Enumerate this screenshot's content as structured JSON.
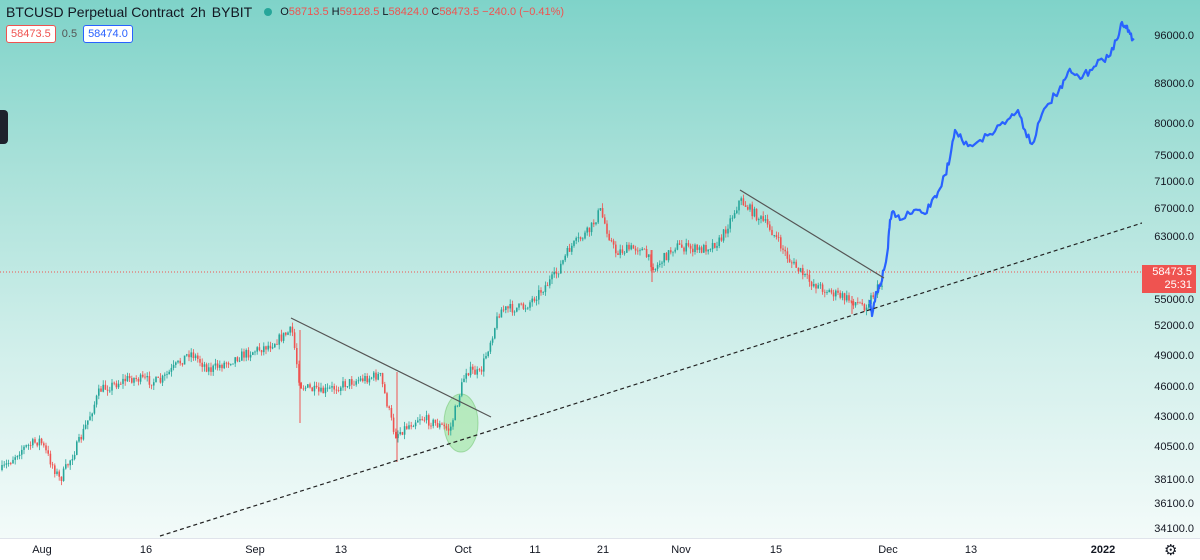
{
  "legend": {
    "symbol": "BTCUSD Perpetual Contract",
    "interval": "2h",
    "exchange": "BYBIT",
    "open_label": "O",
    "open": "58713.5",
    "high_label": "H",
    "high": "59128.5",
    "low_label": "L",
    "low": "58424.0",
    "close_label": "C",
    "close": "58473.5",
    "change": "−240.0 (−0.41%)",
    "status_color": "#26a69a"
  },
  "order_box": {
    "bid": "58473.5",
    "spread": "0.5",
    "ask": "58474.0"
  },
  "last_price": {
    "value": "58473.5",
    "countdown": "25:31",
    "color": "#ef5350"
  },
  "y_axis": {
    "ticks": [
      "96000.0",
      "88000.0",
      "80000.0",
      "75000.0",
      "71000.0",
      "67000.0",
      "63000.0",
      "55000.0",
      "52000.0",
      "49000.0",
      "46000.0",
      "43000.0",
      "40500.0",
      "38100.0",
      "36100.0",
      "34100.0"
    ]
  },
  "x_axis": {
    "ticks": [
      "Aug",
      "16",
      "Sep",
      "13",
      "Oct",
      "11",
      "21",
      "Nov",
      "15",
      "Dec",
      "13",
      "2022"
    ]
  },
  "colors": {
    "up": "#26a69a",
    "down": "#ef5350",
    "projection": "#2962ff",
    "trendline": "#555555"
  },
  "icons": {
    "settings": "gear-icon"
  }
}
